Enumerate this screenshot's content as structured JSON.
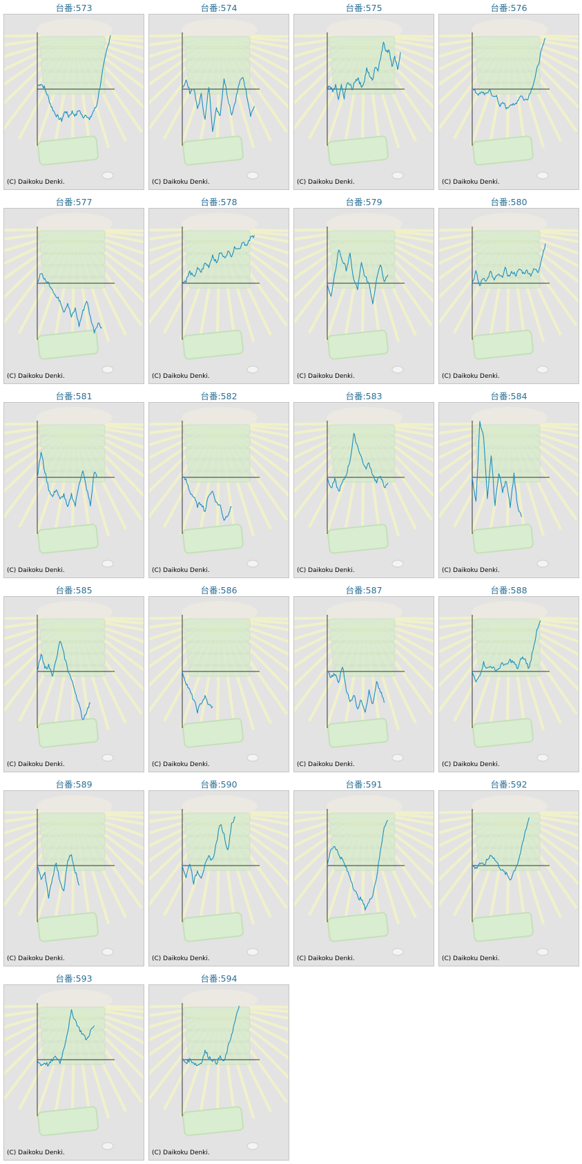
{
  "credit": "(C) Daikoku Denki.",
  "colors": {
    "line": "#1a8fc1",
    "title": "#2a6f95",
    "axis": "#333333",
    "panel": "#e3e3e3"
  },
  "chart_data": [
    {
      "type": "line",
      "title": "台番:573",
      "ylim": [
        -1,
        1
      ],
      "values": [
        0.05,
        0.1,
        0.03,
        -0.12,
        -0.3,
        -0.42,
        -0.5,
        -0.55,
        -0.38,
        -0.48,
        -0.4,
        -0.47,
        -0.36,
        -0.5,
        -0.44,
        -0.55,
        -0.4,
        -0.3,
        0.05,
        0.4,
        0.7,
        0.95
      ]
    },
    {
      "type": "line",
      "title": "台番:574",
      "ylim": [
        -1,
        1
      ],
      "values": [
        0.02,
        0.15,
        -0.05,
        0.02,
        -0.35,
        -0.1,
        -0.55,
        0.05,
        -0.72,
        -0.35,
        -0.45,
        0.2,
        -0.15,
        -0.45,
        -0.2,
        0.1,
        0.22,
        -0.1,
        -0.45,
        -0.3
      ]
    },
    {
      "type": "line",
      "title": "台番:575",
      "ylim": [
        -1,
        1
      ],
      "values": [
        0.0,
        0.05,
        -0.05,
        0.05,
        -0.2,
        0.05,
        -0.15,
        0.1,
        0.08,
        0.0,
        0.15,
        0.2,
        0.05,
        0.1,
        0.35,
        0.25,
        0.15,
        0.4,
        0.35,
        0.55,
        0.85,
        0.65,
        0.7,
        0.4,
        0.55,
        0.35,
        0.65
      ]
    },
    {
      "type": "line",
      "title": "台番:576",
      "ylim": [
        -1,
        1
      ],
      "values": [
        0.0,
        -0.05,
        -0.1,
        -0.05,
        -0.1,
        0.0,
        -0.15,
        -0.12,
        -0.3,
        -0.25,
        -0.35,
        -0.25,
        -0.3,
        -0.2,
        -0.1,
        -0.2,
        -0.15,
        0.0,
        0.2,
        0.45,
        0.7,
        0.9
      ]
    },
    {
      "type": "line",
      "title": "台番:577",
      "ylim": [
        -1,
        1
      ],
      "values": [
        0.02,
        0.2,
        0.05,
        0.0,
        -0.1,
        -0.25,
        -0.3,
        -0.5,
        -0.35,
        -0.6,
        -0.45,
        -0.75,
        -0.5,
        -0.3,
        -0.6,
        -0.85,
        -0.7,
        -0.78
      ]
    },
    {
      "type": "line",
      "title": "台番:578",
      "ylim": [
        -1,
        1
      ],
      "values": [
        0.0,
        0.05,
        0.2,
        0.1,
        0.25,
        0.2,
        0.35,
        0.3,
        0.5,
        0.35,
        0.55,
        0.45,
        0.55,
        0.5,
        0.65,
        0.6,
        0.75,
        0.65,
        0.8,
        0.85
      ]
    },
    {
      "type": "line",
      "title": "台番:579",
      "ylim": [
        -1,
        1
      ],
      "values": [
        0.0,
        -0.25,
        0.15,
        0.6,
        0.4,
        0.25,
        0.5,
        0.05,
        -0.1,
        0.35,
        0.1,
        0.0,
        -0.35,
        0.1,
        0.35,
        0.05,
        0.15
      ]
    },
    {
      "type": "line",
      "title": "台番:580",
      "ylim": [
        -1,
        1
      ],
      "values": [
        0.0,
        0.2,
        -0.05,
        0.1,
        0.05,
        0.2,
        0.05,
        0.15,
        0.1,
        0.25,
        0.12,
        0.2,
        0.15,
        0.25,
        0.18,
        0.22,
        0.15,
        0.25,
        0.2,
        0.45,
        0.7
      ]
    },
    {
      "type": "line",
      "title": "台番:581",
      "ylim": [
        -1,
        1
      ],
      "values": [
        0.0,
        0.45,
        0.1,
        -0.2,
        -0.35,
        -0.2,
        -0.4,
        -0.3,
        -0.55,
        -0.3,
        -0.5,
        -0.1,
        0.1,
        -0.2,
        -0.5,
        0.1,
        0.0
      ]
    },
    {
      "type": "line",
      "title": "台番:582",
      "ylim": [
        -1,
        1
      ],
      "values": [
        0.0,
        -0.05,
        -0.25,
        -0.35,
        -0.5,
        -0.45,
        -0.6,
        -0.3,
        -0.25,
        -0.45,
        -0.5,
        -0.75,
        -0.65,
        -0.52
      ]
    },
    {
      "type": "line",
      "title": "台番:583",
      "ylim": [
        -1,
        1
      ],
      "values": [
        0.0,
        -0.2,
        -0.05,
        -0.25,
        -0.1,
        0.05,
        0.3,
        0.75,
        0.55,
        0.35,
        0.15,
        0.25,
        0.05,
        -0.1,
        0.05,
        -0.2,
        -0.1
      ]
    },
    {
      "type": "line",
      "title": "台番:584",
      "ylim": [
        -1,
        1
      ],
      "values": [
        0.0,
        -0.45,
        1.0,
        0.7,
        -0.4,
        0.4,
        -0.5,
        0.1,
        -0.25,
        -0.05,
        -0.5,
        0.05,
        -0.55,
        -0.7
      ]
    },
    {
      "type": "line",
      "title": "台番:585",
      "ylim": [
        -1,
        1
      ],
      "values": [
        0.0,
        0.3,
        0.05,
        0.1,
        -0.05,
        0.2,
        0.55,
        0.3,
        0.05,
        -0.15,
        -0.35,
        -0.6,
        -0.85,
        -0.7,
        -0.55
      ]
    },
    {
      "type": "line",
      "title": "台番:586",
      "ylim": [
        -1,
        1
      ],
      "values": [
        0.0,
        -0.2,
        -0.35,
        -0.5,
        -0.7,
        -0.55,
        -0.45,
        -0.6,
        -0.62
      ]
    },
    {
      "type": "line",
      "title": "台番:587",
      "ylim": [
        -1,
        1
      ],
      "values": [
        0.0,
        -0.1,
        -0.05,
        -0.2,
        0.1,
        -0.3,
        -0.55,
        -0.4,
        -0.65,
        -0.5,
        -0.7,
        -0.35,
        -0.6,
        -0.2,
        -0.35,
        -0.55
      ]
    },
    {
      "type": "line",
      "title": "台番:588",
      "ylim": [
        -1,
        1
      ],
      "values": [
        0.0,
        -0.2,
        -0.05,
        0.15,
        0.05,
        0.1,
        0.02,
        0.05,
        0.15,
        0.1,
        0.2,
        0.15,
        0.05,
        0.25,
        0.2,
        0.05,
        0.4,
        0.7,
        0.9
      ]
    },
    {
      "type": "line",
      "title": "台番:589",
      "ylim": [
        -1,
        1
      ],
      "values": [
        0.0,
        -0.25,
        -0.15,
        -0.55,
        -0.2,
        0.05,
        -0.3,
        -0.45,
        0.1,
        0.2,
        -0.1,
        -0.35
      ]
    },
    {
      "type": "line",
      "title": "台番:590",
      "ylim": [
        -1,
        1
      ],
      "values": [
        0.0,
        -0.2,
        0.05,
        -0.3,
        -0.1,
        -0.2,
        0.0,
        0.15,
        0.1,
        0.4,
        0.75,
        0.55,
        0.25,
        0.75,
        0.85
      ]
    },
    {
      "type": "line",
      "title": "台番:591",
      "ylim": [
        -1,
        1
      ],
      "values": [
        0.0,
        0.3,
        0.35,
        0.2,
        0.1,
        -0.05,
        -0.2,
        -0.4,
        -0.55,
        -0.6,
        -0.75,
        -0.65,
        -0.5,
        -0.2,
        0.25,
        0.7,
        0.8
      ]
    },
    {
      "type": "line",
      "title": "台番:592",
      "ylim": [
        -1,
        1
      ],
      "values": [
        0.0,
        -0.05,
        0.05,
        0.0,
        0.1,
        0.2,
        0.1,
        0.0,
        -0.1,
        -0.15,
        -0.25,
        -0.1,
        0.05,
        0.3,
        0.6,
        0.85
      ]
    },
    {
      "type": "line",
      "title": "台番:593",
      "ylim": [
        -1,
        1
      ],
      "values": [
        0.0,
        -0.1,
        -0.05,
        -0.1,
        0.0,
        0.05,
        -0.05,
        0.2,
        0.5,
        0.85,
        0.7,
        0.55,
        0.45,
        0.35,
        0.5,
        0.6
      ]
    },
    {
      "type": "line",
      "title": "台番:594",
      "ylim": [
        -1,
        1
      ],
      "values": [
        0.0,
        -0.05,
        0.0,
        -0.05,
        -0.1,
        -0.05,
        0.15,
        0.05,
        0.0,
        -0.05,
        0.05,
        -0.05,
        0.2,
        0.45,
        0.7,
        0.95
      ]
    }
  ]
}
